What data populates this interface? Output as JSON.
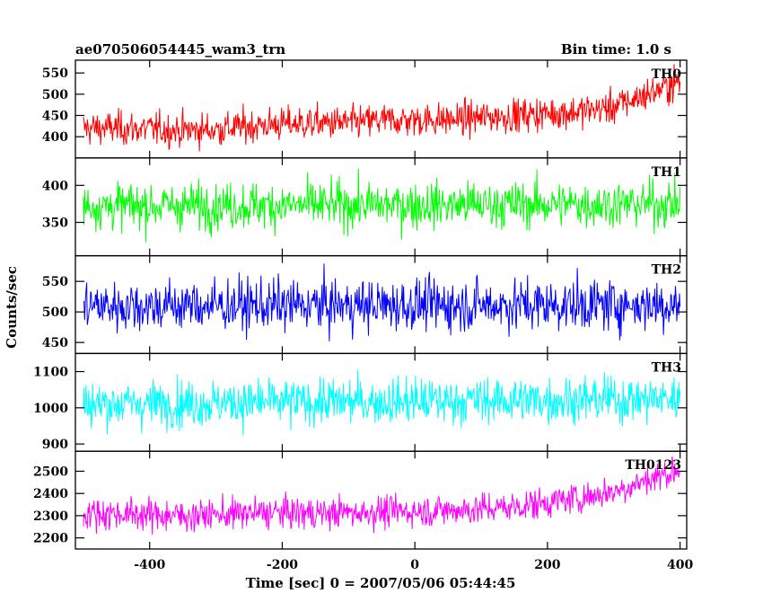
{
  "chart_data": {
    "type": "line",
    "title_left": "ae070506054445_wam3_trn",
    "title_right": "Bin time: 1.0 s",
    "xlabel": "Time [sec] 0 = 2007/05/06 05:44:45",
    "ylabel": "Counts/sec",
    "xlim": [
      -512,
      410
    ],
    "x_ticks": [
      -400,
      -200,
      0,
      200,
      400
    ],
    "bin_time": 1.0,
    "grid": false,
    "panels": [
      {
        "name": "TH0",
        "color": "#ff0000",
        "ylim": [
          350,
          580
        ],
        "y_ticks": [
          400,
          450,
          500,
          550
        ],
        "x": [
          -500,
          -450,
          -400,
          -350,
          -300,
          -250,
          -200,
          -150,
          -100,
          -50,
          0,
          50,
          100,
          150,
          200,
          250,
          300,
          350,
          400
        ],
        "trend": [
          420,
          420,
          418,
          415,
          417,
          425,
          430,
          432,
          432,
          438,
          440,
          440,
          445,
          450,
          455,
          460,
          470,
          500,
          530
        ],
        "noise": 28
      },
      {
        "name": "TH1",
        "color": "#00ff00",
        "ylim": [
          305,
          437
        ],
        "y_ticks": [
          350,
          400
        ],
        "x": [
          -500,
          400
        ],
        "trend": [
          372,
          375
        ],
        "noise": 22
      },
      {
        "name": "TH2",
        "color": "#0000ff",
        "ylim": [
          432,
          592
        ],
        "y_ticks": [
          450,
          500,
          550
        ],
        "x": [
          -500,
          400
        ],
        "trend": [
          510,
          512
        ],
        "noise": 30
      },
      {
        "name": "TH3",
        "color": "#00ffff",
        "ylim": [
          880,
          1150
        ],
        "y_ticks": [
          900,
          1000,
          1100
        ],
        "x": [
          -500,
          400
        ],
        "trend": [
          1010,
          1025
        ],
        "noise": 45
      },
      {
        "name": "TH0123",
        "color": "#ff00ff",
        "ylim": [
          2150,
          2590
        ],
        "y_ticks": [
          2200,
          2300,
          2400,
          2500
        ],
        "x": [
          -500,
          -450,
          -400,
          -350,
          -300,
          -250,
          -200,
          -150,
          -100,
          -50,
          0,
          50,
          100,
          150,
          200,
          250,
          300,
          350,
          400
        ],
        "trend": [
          2310,
          2310,
          2305,
          2300,
          2305,
          2310,
          2315,
          2310,
          2315,
          2318,
          2320,
          2325,
          2330,
          2340,
          2360,
          2380,
          2410,
          2460,
          2510
        ],
        "noise": 50
      }
    ]
  }
}
